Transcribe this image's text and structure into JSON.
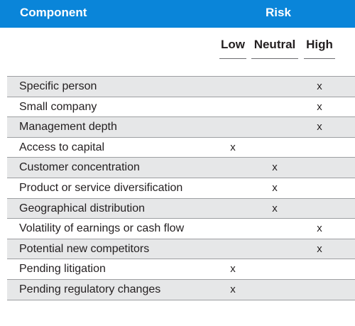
{
  "header": {
    "component_label": "Component",
    "risk_label": "Risk"
  },
  "subheaders": {
    "low": "Low",
    "neutral": "Neutral",
    "high": "High"
  },
  "rows": [
    {
      "component": "Specific person",
      "low": "",
      "neutral": "",
      "high": "x"
    },
    {
      "component": "Small company",
      "low": "",
      "neutral": "",
      "high": "x"
    },
    {
      "component": "Management depth",
      "low": "",
      "neutral": "",
      "high": "x"
    },
    {
      "component": "Access to capital",
      "low": "x",
      "neutral": "",
      "high": ""
    },
    {
      "component": "Customer concentration",
      "low": "",
      "neutral": "x",
      "high": ""
    },
    {
      "component": "Product or service diversification",
      "low": "",
      "neutral": "x",
      "high": ""
    },
    {
      "component": "Geographical distribution",
      "low": "",
      "neutral": "x",
      "high": ""
    },
    {
      "component": "Volatility of earnings or cash flow",
      "low": "",
      "neutral": "",
      "high": "x"
    },
    {
      "component": "Potential new competitors",
      "low": "",
      "neutral": "",
      "high": "x"
    },
    {
      "component": "Pending litigation",
      "low": "x",
      "neutral": "",
      "high": ""
    },
    {
      "component": "Pending regulatory changes",
      "low": "x",
      "neutral": "",
      "high": ""
    }
  ]
}
